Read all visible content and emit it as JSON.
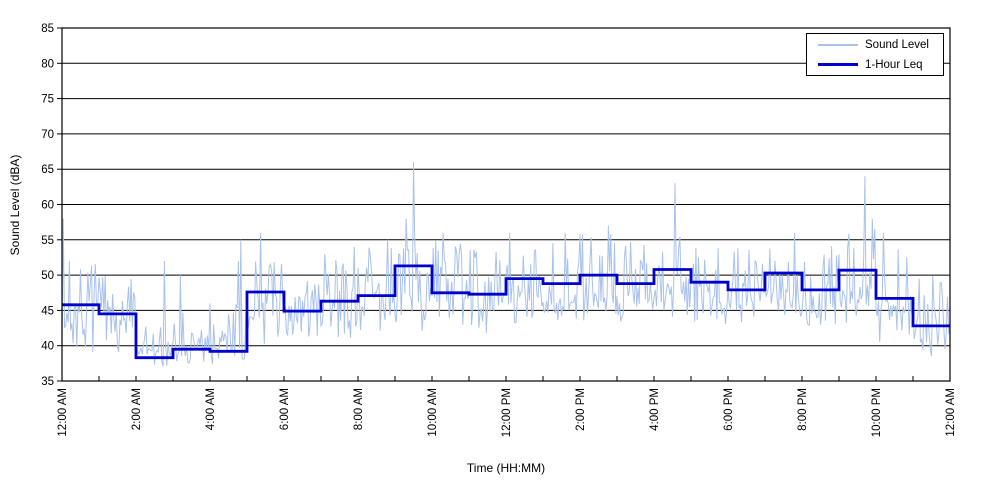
{
  "chart_data": {
    "type": "line",
    "title": "",
    "xlabel": "Time (HH:MM)",
    "ylabel": "Sound Level (dBA)",
    "ylim": [
      35,
      85
    ],
    "ytick_step": 5,
    "x_hours_range": [
      0,
      24
    ],
    "x_major_tick_every_hours": 2,
    "x_minor_tick_every_hours": 1,
    "xtick_labels": [
      "12:00 AM",
      "2:00 AM",
      "4:00 AM",
      "6:00 AM",
      "8:00 AM",
      "10:00 AM",
      "12:00 PM",
      "2:00 PM",
      "4:00 PM",
      "6:00 PM",
      "8:00 PM",
      "10:00 PM",
      "12:00 AM"
    ],
    "grid": {
      "horizontal": true,
      "vertical": false,
      "color": "#000000"
    },
    "background": "#ffffff",
    "legend": {
      "position": "top-right",
      "border_color": "#000000",
      "entries": [
        {
          "label": "Sound Level"
        },
        {
          "label": "1-Hour Leq"
        }
      ]
    },
    "series": [
      {
        "name": "Sound Level",
        "color": "#A9C2EC",
        "kind": "minute_samples",
        "hourly_envelope": [
          {
            "hour": "12 AM",
            "lo": 39.0,
            "typ": 44.5,
            "hi": 52.0
          },
          {
            "hour": "1 AM",
            "lo": 38.0,
            "typ": 42.5,
            "hi": 50.0
          },
          {
            "hour": "2 AM",
            "lo": 36.5,
            "typ": 37.8,
            "hi": 43.0
          },
          {
            "hour": "3 AM",
            "lo": 37.0,
            "typ": 38.5,
            "hi": 45.0
          },
          {
            "hour": "4 AM",
            "lo": 37.0,
            "typ": 38.8,
            "hi": 46.0
          },
          {
            "hour": "5 AM",
            "lo": 40.0,
            "typ": 45.0,
            "hi": 53.0
          },
          {
            "hour": "6 AM",
            "lo": 40.5,
            "typ": 44.5,
            "hi": 51.5
          },
          {
            "hour": "7 AM",
            "lo": 41.0,
            "typ": 45.8,
            "hi": 53.0
          },
          {
            "hour": "8 AM",
            "lo": 41.5,
            "typ": 46.5,
            "hi": 54.0
          },
          {
            "hour": "9 AM",
            "lo": 42.0,
            "typ": 47.5,
            "hi": 56.0
          },
          {
            "hour": "10 AM",
            "lo": 41.5,
            "typ": 46.5,
            "hi": 55.0
          },
          {
            "hour": "11 AM",
            "lo": 41.5,
            "typ": 46.3,
            "hi": 54.0
          },
          {
            "hour": "12 PM",
            "lo": 43.0,
            "typ": 47.8,
            "hi": 55.5
          },
          {
            "hour": "1 PM",
            "lo": 43.0,
            "typ": 47.3,
            "hi": 55.0
          },
          {
            "hour": "2 PM",
            "lo": 43.0,
            "typ": 48.2,
            "hi": 56.0
          },
          {
            "hour": "3 PM",
            "lo": 43.0,
            "typ": 47.3,
            "hi": 55.0
          },
          {
            "hour": "4 PM",
            "lo": 44.0,
            "typ": 48.8,
            "hi": 56.0
          },
          {
            "hour": "5 PM",
            "lo": 43.0,
            "typ": 47.8,
            "hi": 55.0
          },
          {
            "hour": "6 PM",
            "lo": 42.5,
            "typ": 46.5,
            "hi": 54.0
          },
          {
            "hour": "7 PM",
            "lo": 44.0,
            "typ": 48.8,
            "hi": 56.0
          },
          {
            "hour": "8 PM",
            "lo": 42.5,
            "typ": 46.5,
            "hi": 54.5
          },
          {
            "hour": "9 PM",
            "lo": 43.0,
            "typ": 48.8,
            "hi": 57.0
          },
          {
            "hour": "10 PM",
            "lo": 40.5,
            "typ": 45.5,
            "hi": 55.0
          },
          {
            "hour": "11 PM",
            "lo": 38.5,
            "typ": 42.0,
            "hi": 50.0
          }
        ],
        "spikes": [
          {
            "t": 0.03,
            "v": 58
          },
          {
            "t": 0.2,
            "v": 52
          },
          {
            "t": 2.75,
            "v": 52
          },
          {
            "t": 3.2,
            "v": 50
          },
          {
            "t": 4.75,
            "v": 52
          },
          {
            "t": 4.85,
            "v": 55
          },
          {
            "t": 5.35,
            "v": 56
          },
          {
            "t": 7.9,
            "v": 54
          },
          {
            "t": 8.8,
            "v": 55
          },
          {
            "t": 9.3,
            "v": 58
          },
          {
            "t": 9.5,
            "v": 66
          },
          {
            "t": 10.3,
            "v": 56
          },
          {
            "t": 12.1,
            "v": 56
          },
          {
            "t": 13.6,
            "v": 56
          },
          {
            "t": 14.75,
            "v": 57
          },
          {
            "t": 16.55,
            "v": 63
          },
          {
            "t": 19.8,
            "v": 56
          },
          {
            "t": 21.7,
            "v": 64
          },
          {
            "t": 21.9,
            "v": 58
          },
          {
            "t": 22.2,
            "v": 56
          }
        ]
      },
      {
        "name": "1-Hour Leq",
        "color": "#0000CC",
        "kind": "hourly_step",
        "hours": [
          "12 AM",
          "1 AM",
          "2 AM",
          "3 AM",
          "4 AM",
          "5 AM",
          "6 AM",
          "7 AM",
          "8 AM",
          "9 AM",
          "10 AM",
          "11 AM",
          "12 PM",
          "1 PM",
          "2 PM",
          "3 PM",
          "4 PM",
          "5 PM",
          "6 PM",
          "7 PM",
          "8 PM",
          "9 PM",
          "10 PM",
          "11 PM"
        ],
        "values_dBA": [
          45.8,
          44.5,
          38.3,
          39.5,
          39.2,
          47.6,
          44.9,
          46.3,
          47.1,
          51.3,
          47.5,
          47.3,
          49.5,
          48.8,
          50.0,
          48.8,
          50.8,
          49.0,
          47.9,
          50.3,
          47.9,
          50.7,
          46.7,
          42.8
        ]
      }
    ]
  }
}
